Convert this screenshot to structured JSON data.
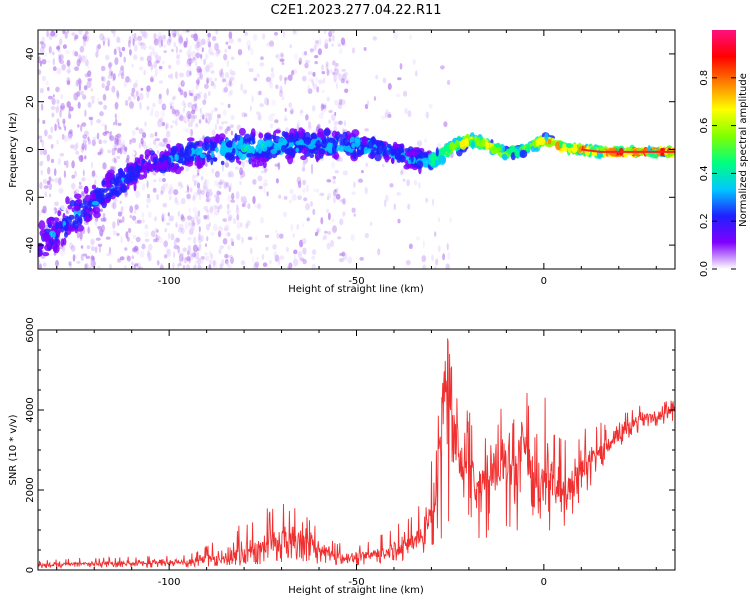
{
  "title": "C2E1.2023.277.04.22.R11",
  "chart_data": [
    {
      "type": "heatmap",
      "xlabel": "Height of straight line (km)",
      "ylabel": "Frequency (Hz)",
      "xlim": [
        -135,
        35
      ],
      "ylim": [
        -50,
        50
      ],
      "x_ticks": [
        -100,
        -50,
        0
      ],
      "y_ticks": [
        -40,
        -20,
        0,
        20,
        40
      ],
      "colorbar": {
        "label": "Normalized spectral amplitude",
        "range": [
          0,
          1
        ],
        "ticks": [
          0.0,
          0.2,
          0.4,
          0.6,
          0.8
        ],
        "tick_labels": [
          "0.0",
          "0.2",
          "0.4",
          "0.6",
          "0.8"
        ],
        "colors": [
          "#ffffff",
          "#8000ff",
          "#2020ff",
          "#00c8ff",
          "#00ff80",
          "#80ff00",
          "#ffff00",
          "#ff8000",
          "#ff0000",
          "#ff1080"
        ]
      },
      "ridge": {
        "x": [
          -135,
          -125,
          -115,
          -105,
          -95,
          -85,
          -75,
          -65,
          -55,
          -45,
          -35,
          -30,
          -25,
          -20,
          -15,
          -10,
          -5,
          0,
          5,
          10,
          15,
          20,
          25,
          30,
          35
        ],
        "y": [
          -40,
          -28,
          -15,
          -6,
          -2,
          0,
          1,
          2,
          2,
          1,
          -4,
          -5,
          0,
          4,
          2,
          -2,
          0,
          4,
          1,
          0,
          -1,
          -1,
          -1,
          -1,
          -1
        ],
        "amplitude": [
          0.2,
          0.25,
          0.25,
          0.2,
          0.3,
          0.35,
          0.35,
          0.3,
          0.35,
          0.3,
          0.25,
          0.45,
          0.6,
          0.75,
          0.7,
          0.55,
          0.5,
          0.7,
          0.8,
          0.85,
          0.9,
          0.9,
          0.9,
          0.9,
          0.9
        ],
        "spread_hz": [
          14,
          12,
          10,
          8,
          8,
          8,
          8,
          8,
          7,
          6,
          6,
          5,
          4,
          3,
          3,
          3,
          3,
          3,
          2,
          2,
          1.5,
          1.5,
          1.5,
          1.5,
          1.5
        ]
      }
    },
    {
      "type": "line",
      "xlabel": "Height of straight line (km)",
      "ylabel": "SNR (10 * v/v)",
      "xlim": [
        -135,
        35
      ],
      "ylim": [
        0,
        6000
      ],
      "x_ticks": [
        -100,
        -50,
        0
      ],
      "y_ticks": [
        0,
        2000,
        4000,
        6000
      ],
      "color": "#f03030",
      "series": [
        {
          "x": [
            -135,
            -125,
            -115,
            -105,
            -95,
            -90,
            -85,
            -80,
            -75,
            -70,
            -65,
            -60,
            -55,
            -50,
            -45,
            -40,
            -35,
            -32,
            -30,
            -28,
            -26,
            -24,
            -22,
            -20,
            -18,
            -16,
            -14,
            -12,
            -10,
            -8,
            -6,
            -5,
            -3,
            0,
            3,
            5,
            8,
            10,
            15,
            20,
            25,
            30,
            35
          ],
          "y": [
            120,
            150,
            160,
            180,
            200,
            260,
            340,
            420,
            550,
            700,
            800,
            500,
            350,
            300,
            400,
            500,
            700,
            1000,
            1500,
            2800,
            5000,
            3000,
            2600,
            3200,
            2200,
            2000,
            2500,
            2800,
            2600,
            2300,
            2900,
            3800,
            1900,
            2400,
            2300,
            1800,
            2300,
            2500,
            3000,
            3400,
            3700,
            3900,
            4000
          ],
          "envelope_max": [
            250,
            300,
            320,
            350,
            400,
            600,
            900,
            1200,
            1500,
            1700,
            1600,
            1000,
            700,
            600,
            800,
            1100,
            1400,
            1800,
            2800,
            4200,
            6000,
            4700,
            3800,
            4200,
            3500,
            3300,
            3800,
            4200,
            3800,
            3800,
            4300,
            4900,
            3200,
            4600,
            3400,
            3300,
            3300,
            3500,
            3700,
            3900,
            4100,
            4200,
            4250
          ],
          "envelope_min": [
            40,
            60,
            60,
            60,
            60,
            80,
            100,
            120,
            150,
            200,
            220,
            150,
            120,
            100,
            150,
            200,
            250,
            300,
            400,
            800,
            700,
            600,
            900,
            1100,
            800,
            700,
            900,
            1000,
            1000,
            700,
            900,
            1200,
            500,
            800,
            1100,
            1000,
            1400,
            1700,
            2500,
            3000,
            3400,
            3600,
            3700
          ]
        }
      ]
    }
  ]
}
